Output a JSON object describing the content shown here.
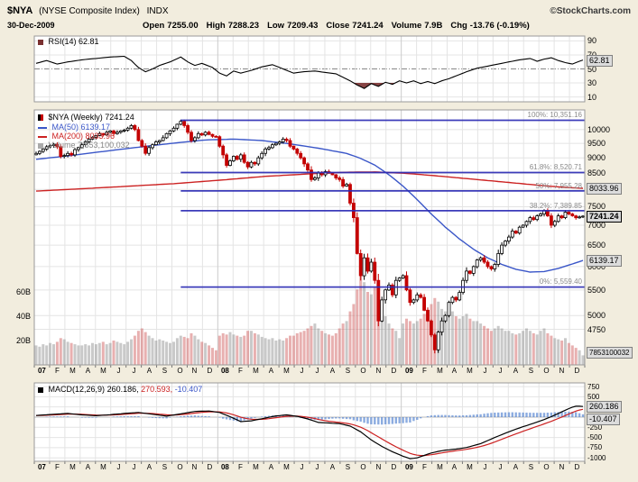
{
  "header": {
    "symbol": "$NYA",
    "name": "(NYSE Composite Index)",
    "type": "INDX",
    "copyright": "©StockCharts.com",
    "date": "30-Dec-2009",
    "quote": [
      {
        "label": "Open",
        "value": "7255.00"
      },
      {
        "label": "High",
        "value": "7288.23"
      },
      {
        "label": "Low",
        "value": "7209.43"
      },
      {
        "label": "Close",
        "value": "7241.24"
      },
      {
        "label": "Volume",
        "value": "7.9B"
      },
      {
        "label": "Chg",
        "value": "-13.76 (-0.19%)"
      }
    ]
  },
  "x_axis": {
    "labels": [
      "07",
      "F",
      "M",
      "A",
      "M",
      "J",
      "J",
      "A",
      "S",
      "O",
      "N",
      "D",
      "08",
      "F",
      "M",
      "A",
      "M",
      "J",
      "J",
      "A",
      "S",
      "O",
      "N",
      "D",
      "09",
      "F",
      "M",
      "A",
      "M",
      "J",
      "J",
      "A",
      "S",
      "O",
      "N",
      "D"
    ]
  },
  "colors": {
    "background": "#F2EDDE",
    "plot_bg": "#FFFFFF",
    "grid": "#E4E4E4",
    "grid_year": "#CCCCCC",
    "fib_line": "#2B2BB4",
    "ma50": "#3A56C8",
    "ma200": "#CC2222",
    "candle_down": "#C40000",
    "candle_up": "#000000",
    "rsi_fill": "#7A3030",
    "macd_line": "#000000",
    "signal_line": "#CC2222",
    "histogram": "#4F7FD0",
    "vol_down": "rgba(205,80,80,0.45)",
    "vol_up": "rgba(120,120,120,0.40)"
  },
  "chart_data": [
    {
      "panel": "rsi",
      "type": "line",
      "label": "RSI(14) 62.81",
      "box": "62.81",
      "last_value": 62.81,
      "ylim": [
        3,
        97
      ],
      "yticks": [
        90,
        70,
        50,
        30,
        10
      ],
      "midline": 50,
      "overbought": 70,
      "oversold": 30,
      "points": [
        [
          0,
          58
        ],
        [
          3,
          62
        ],
        [
          6,
          57
        ],
        [
          9,
          60
        ],
        [
          13,
          63
        ],
        [
          17,
          65
        ],
        [
          21,
          67
        ],
        [
          25,
          68
        ],
        [
          27,
          62
        ],
        [
          29,
          52
        ],
        [
          31,
          46
        ],
        [
          33,
          50
        ],
        [
          35,
          55
        ],
        [
          38,
          60
        ],
        [
          41,
          67
        ],
        [
          43,
          60
        ],
        [
          45,
          55
        ],
        [
          47,
          58
        ],
        [
          50,
          52
        ],
        [
          52,
          44
        ],
        [
          54,
          40
        ],
        [
          56,
          47
        ],
        [
          58,
          44
        ],
        [
          61,
          48
        ],
        [
          64,
          53
        ],
        [
          67,
          56
        ],
        [
          70,
          50
        ],
        [
          73,
          44
        ],
        [
          76,
          46
        ],
        [
          79,
          47
        ],
        [
          82,
          45
        ],
        [
          85,
          43
        ],
        [
          87,
          38
        ],
        [
          89,
          33
        ],
        [
          91,
          27
        ],
        [
          93,
          22
        ],
        [
          95,
          29
        ],
        [
          97,
          25
        ],
        [
          99,
          31
        ],
        [
          101,
          28
        ],
        [
          103,
          33
        ],
        [
          105,
          30
        ],
        [
          107,
          33
        ],
        [
          109,
          29
        ],
        [
          111,
          32
        ],
        [
          113,
          29
        ],
        [
          115,
          33
        ],
        [
          117,
          36
        ],
        [
          119,
          40
        ],
        [
          122,
          46
        ],
        [
          125,
          51
        ],
        [
          128,
          54
        ],
        [
          131,
          57
        ],
        [
          134,
          60
        ],
        [
          137,
          63
        ],
        [
          140,
          65
        ],
        [
          142,
          61
        ],
        [
          144,
          64
        ],
        [
          146,
          66
        ],
        [
          148,
          62
        ],
        [
          150,
          59
        ],
        [
          152,
          57
        ],
        [
          154,
          61
        ],
        [
          155,
          62.81
        ]
      ]
    },
    {
      "panel": "price",
      "type": "candlestick",
      "timeframe": "Weekly",
      "legend": {
        "series": "$NYA (Weekly) 7241.24",
        "ma50": "MA(50) 6139.17",
        "ma200": "MA(200) 8033.96",
        "volume": "Volume 7,853,100,032"
      },
      "boxes": {
        "ma200": "8033.96",
        "close": "7241.24",
        "ma50": "6139.17",
        "volume": "7853100032"
      },
      "ylim_log": [
        4160,
        10760
      ],
      "yticks": [
        10000,
        9500,
        9000,
        8500,
        8000,
        7500,
        7000,
        6500,
        6000,
        5500,
        5000,
        4750
      ],
      "vol_ticks": [
        {
          "label": "60B",
          "value": 60
        },
        {
          "label": "40B",
          "value": 40
        },
        {
          "label": "20B",
          "value": 20
        }
      ],
      "fib_levels": [
        {
          "label": "100%: 10,351.16",
          "value": 10351.16
        },
        {
          "label": "61.8%: 8,520.71",
          "value": 8520.71
        },
        {
          "label": "50%: 7,955.28",
          "value": 7955.28
        },
        {
          "label": "38.2%: 7,389.85",
          "value": 7389.85
        },
        {
          "label": "0%: 5,559.40",
          "value": 5559.4
        }
      ],
      "closes": [
        9150,
        9220,
        9300,
        9380,
        9420,
        9460,
        9380,
        9050,
        9080,
        9150,
        9100,
        9280,
        9350,
        9450,
        9560,
        9650,
        9720,
        9780,
        9850,
        9800,
        9900,
        9950,
        9850,
        9900,
        9950,
        9980,
        10050,
        10150,
        10000,
        9600,
        9400,
        9150,
        9350,
        9450,
        9550,
        9600,
        9700,
        9850,
        9950,
        10050,
        10200,
        10311,
        10150,
        9900,
        9600,
        9700,
        9850,
        9800,
        9900,
        9820,
        9750,
        9740,
        9400,
        9100,
        8750,
        8900,
        9050,
        8950,
        9100,
        8850,
        8700,
        8850,
        8800,
        9000,
        9150,
        9300,
        9350,
        9450,
        9500,
        9550,
        9650,
        9600,
        9400,
        9300,
        9150,
        9000,
        8800,
        8600,
        8300,
        8350,
        8500,
        8450,
        8550,
        8500,
        8450,
        8350,
        8300,
        8100,
        8150,
        7600,
        7200,
        6300,
        5800,
        6200,
        5900,
        6100,
        5700,
        4900,
        5300,
        5500,
        5600,
        5400,
        5700,
        5750,
        5800,
        5500,
        5250,
        5300,
        5400,
        5350,
        5100,
        4900,
        4650,
        4400,
        4700,
        4900,
        5000,
        5250,
        5350,
        5300,
        5450,
        5700,
        5900,
        5850,
        6000,
        6150,
        6200,
        6100,
        6000,
        5950,
        6050,
        6300,
        6500,
        6600,
        6700,
        6850,
        6800,
        6950,
        7000,
        7100,
        7200,
        7150,
        7250,
        7300,
        7400,
        7250,
        7000,
        7100,
        7250,
        7200,
        7350,
        7300,
        7250,
        7200,
        7220,
        7241.24
      ],
      "volumes_b": [
        16,
        15,
        17,
        16,
        18,
        17,
        19,
        22,
        21,
        19,
        18,
        17,
        16,
        16,
        17,
        16,
        18,
        17,
        18,
        19,
        17,
        18,
        20,
        19,
        18,
        17,
        19,
        21,
        24,
        28,
        30,
        27,
        24,
        22,
        20,
        21,
        20,
        19,
        18,
        19,
        22,
        24,
        23,
        22,
        26,
        24,
        21,
        19,
        18,
        16,
        14,
        12,
        24,
        26,
        25,
        27,
        25,
        24,
        23,
        24,
        28,
        28,
        26,
        25,
        23,
        22,
        21,
        22,
        20,
        21,
        20,
        22,
        24,
        24,
        26,
        27,
        28,
        30,
        32,
        34,
        30,
        28,
        26,
        25,
        24,
        26,
        30,
        34,
        36,
        44,
        50,
        62,
        75,
        68,
        60,
        58,
        64,
        52,
        46,
        40,
        34,
        30,
        28,
        22,
        34,
        38,
        36,
        34,
        36,
        38,
        42,
        44,
        50,
        55,
        52,
        46,
        44,
        42,
        44,
        40,
        38,
        40,
        42,
        38,
        36,
        36,
        34,
        32,
        30,
        28,
        30,
        32,
        30,
        28,
        28,
        26,
        25,
        26,
        28,
        30,
        28,
        26,
        25,
        28,
        30,
        26,
        24,
        22,
        21,
        20,
        22,
        18,
        16,
        14,
        12,
        7.85
      ],
      "ma50_points": [
        [
          0,
          8950
        ],
        [
          10,
          9080
        ],
        [
          20,
          9230
        ],
        [
          30,
          9380
        ],
        [
          40,
          9520
        ],
        [
          48,
          9620
        ],
        [
          56,
          9650
        ],
        [
          64,
          9600
        ],
        [
          72,
          9480
        ],
        [
          80,
          9330
        ],
        [
          88,
          9150
        ],
        [
          92,
          8980
        ],
        [
          96,
          8760
        ],
        [
          100,
          8450
        ],
        [
          104,
          8100
        ],
        [
          108,
          7700
        ],
        [
          112,
          7300
        ],
        [
          116,
          6950
        ],
        [
          120,
          6650
        ],
        [
          124,
          6400
        ],
        [
          128,
          6200
        ],
        [
          132,
          6050
        ],
        [
          136,
          5940
        ],
        [
          140,
          5880
        ],
        [
          144,
          5890
        ],
        [
          148,
          5960
        ],
        [
          152,
          6060
        ],
        [
          155,
          6139.17
        ]
      ],
      "ma200_points": [
        [
          0,
          7950
        ],
        [
          20,
          8060
        ],
        [
          40,
          8180
        ],
        [
          52,
          8280
        ],
        [
          65,
          8400
        ],
        [
          78,
          8480
        ],
        [
          88,
          8530
        ],
        [
          96,
          8540
        ],
        [
          104,
          8500
        ],
        [
          112,
          8430
        ],
        [
          120,
          8350
        ],
        [
          128,
          8270
        ],
        [
          136,
          8190
        ],
        [
          144,
          8110
        ],
        [
          150,
          8060
        ],
        [
          155,
          8033.96
        ]
      ],
      "last": {
        "close": 7241.24,
        "ma50": 6139.17,
        "ma200": 8033.96,
        "volume": "7,853,100,032"
      }
    },
    {
      "panel": "macd",
      "type": "line+histogram",
      "legend": {
        "name": "MACD(12,26,9)",
        "v1": "260.186,",
        "v2": "270.593,",
        "v3": "-10.407"
      },
      "boxes": {
        "macd": "260.186",
        "hist": "-10.407"
      },
      "last": {
        "macd": 260.186,
        "signal": 270.593,
        "hist": -10.407
      },
      "ylim": [
        -1084,
        840
      ],
      "yticks": [
        750,
        500,
        250,
        0,
        -250,
        -500,
        -750,
        -1000
      ],
      "macd_points": [
        [
          0,
          40
        ],
        [
          5,
          70
        ],
        [
          9,
          90
        ],
        [
          13,
          55
        ],
        [
          17,
          35
        ],
        [
          21,
          60
        ],
        [
          25,
          90
        ],
        [
          29,
          115
        ],
        [
          33,
          70
        ],
        [
          37,
          25
        ],
        [
          41,
          80
        ],
        [
          45,
          140
        ],
        [
          49,
          150
        ],
        [
          52,
          115
        ],
        [
          55,
          10
        ],
        [
          58,
          -110
        ],
        [
          61,
          -90
        ],
        [
          64,
          -40
        ],
        [
          68,
          30
        ],
        [
          71,
          55
        ],
        [
          74,
          20
        ],
        [
          77,
          -45
        ],
        [
          80,
          -130
        ],
        [
          83,
          -145
        ],
        [
          86,
          -160
        ],
        [
          89,
          -220
        ],
        [
          92,
          -360
        ],
        [
          95,
          -560
        ],
        [
          98,
          -720
        ],
        [
          101,
          -850
        ],
        [
          104,
          -960
        ],
        [
          106,
          -1020
        ],
        [
          108,
          -1000
        ],
        [
          110,
          -940
        ],
        [
          112,
          -880
        ],
        [
          114,
          -840
        ],
        [
          116,
          -810
        ],
        [
          118,
          -795
        ],
        [
          120,
          -775
        ],
        [
          122,
          -745
        ],
        [
          124,
          -700
        ],
        [
          126,
          -650
        ],
        [
          128,
          -575
        ],
        [
          130,
          -500
        ],
        [
          132,
          -430
        ],
        [
          134,
          -360
        ],
        [
          136,
          -295
        ],
        [
          138,
          -235
        ],
        [
          140,
          -180
        ],
        [
          142,
          -120
        ],
        [
          144,
          -60
        ],
        [
          146,
          10
        ],
        [
          148,
          90
        ],
        [
          150,
          170
        ],
        [
          151,
          210
        ],
        [
          152,
          245
        ],
        [
          153,
          268
        ],
        [
          154,
          268
        ],
        [
          155,
          260.186
        ]
      ]
    }
  ]
}
